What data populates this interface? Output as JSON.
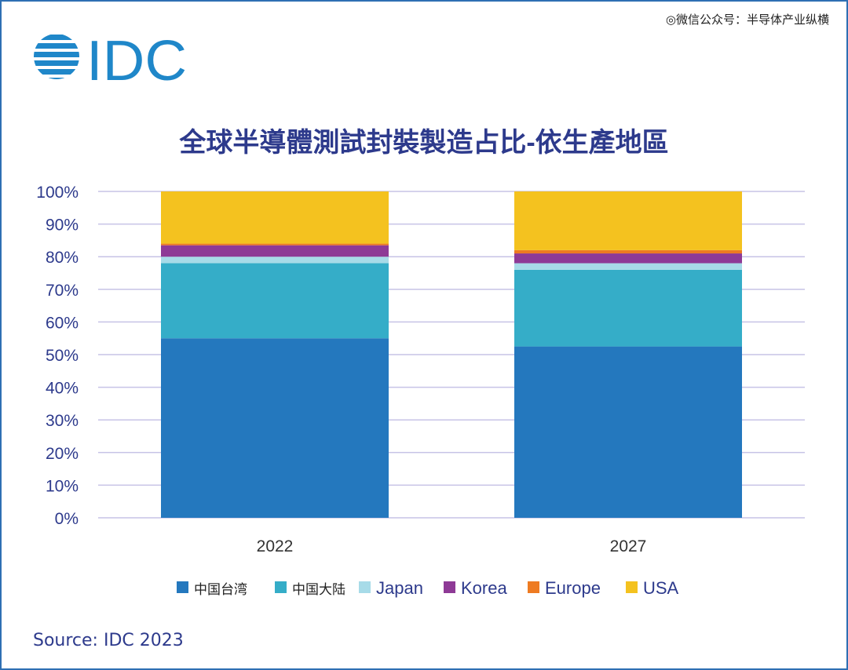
{
  "watermark": "◎微信公众号：半导体产业纵横",
  "logo": {
    "text": "IDC",
    "color": "#1f87c9"
  },
  "source": "Source: IDC 2023",
  "colors": {
    "title": "#2d3a8c",
    "axis_text": "#2d3a8c",
    "grid": "#c7c3e6"
  },
  "chart_data": {
    "type": "bar",
    "stacked": true,
    "title": "全球半導體測試封裝製造占比-依生產地區",
    "categories": [
      "2022",
      "2027"
    ],
    "ylim": [
      0,
      100
    ],
    "yticks": [
      "0%",
      "10%",
      "20%",
      "30%",
      "40%",
      "50%",
      "60%",
      "70%",
      "80%",
      "90%",
      "100%"
    ],
    "grid": true,
    "legend_position": "bottom",
    "series": [
      {
        "name": "中国台湾",
        "color": "#2478be",
        "values": [
          55,
          52.5
        ]
      },
      {
        "name": "中国大陆",
        "color": "#35adc8",
        "values": [
          23,
          23.5
        ]
      },
      {
        "name": "Japan",
        "color": "#a7dbe8",
        "values": [
          2,
          2
        ]
      },
      {
        "name": "Korea",
        "color": "#8e3a96",
        "values": [
          3.5,
          3
        ]
      },
      {
        "name": "Europe",
        "color": "#ee7b22",
        "values": [
          0.5,
          1
        ]
      },
      {
        "name": "USA",
        "color": "#f4c21f",
        "values": [
          16,
          18
        ]
      }
    ]
  }
}
